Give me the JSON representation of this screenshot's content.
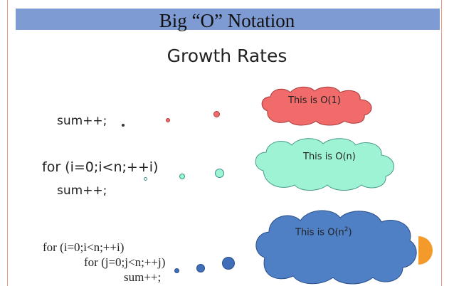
{
  "slide": {
    "title": "Big “O” Notation",
    "subtitle": "Growth Rates"
  },
  "code": {
    "block1_line1": "sum++;",
    "block2_line1": "for (i=0;i<n;++i)",
    "block2_line2": "sum++;",
    "block3_line1": "for (i=0;i<n;++i)",
    "block3_line2": "for (j=0;j<n;++j)",
    "block3_line3": "sum++;"
  },
  "clouds": {
    "o1": {
      "label": "This is O(1)",
      "color": "#f26b6b"
    },
    "on": {
      "label": "This is O(n)",
      "color": "#9ff3d5"
    },
    "on2": {
      "label_prefix": "This is O(n",
      "label_sup": "2",
      "label_suffix": ")",
      "color": "#4f7fc4"
    }
  },
  "colors": {
    "title_bar": "#7f9bd3",
    "accent_shape": "#f39a2a",
    "rule": "#e89a86"
  }
}
